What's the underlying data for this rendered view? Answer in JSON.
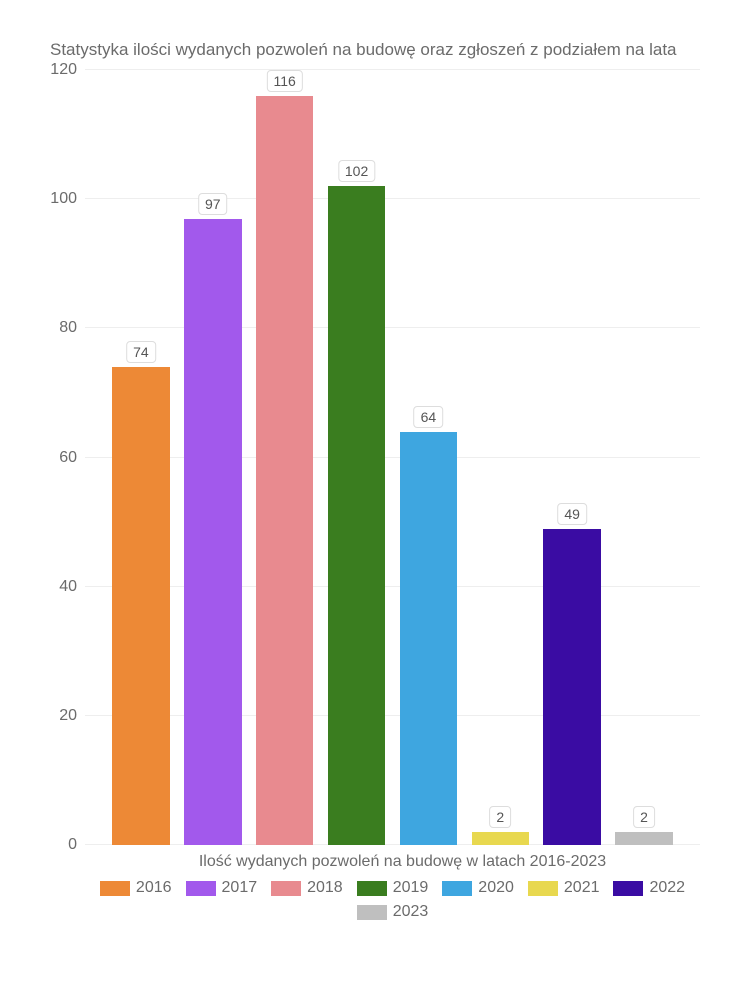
{
  "chart": {
    "type": "bar",
    "title": "Statystyka ilości wydanych pozwoleń na budowę oraz zgłoszeń z podziałem na lata",
    "xlabel": "Ilość wydanych pozwoleń na budowę w latach 2016-2023",
    "ylim": [
      0,
      120
    ],
    "ytick_step": 20,
    "yticks": [
      {
        "value": 0,
        "label": "0"
      },
      {
        "value": 20,
        "label": "20"
      },
      {
        "value": 40,
        "label": "40"
      },
      {
        "value": 60,
        "label": "60"
      },
      {
        "value": 80,
        "label": "80"
      },
      {
        "value": 100,
        "label": "100"
      },
      {
        "value": 120,
        "label": "120"
      }
    ],
    "bars": [
      {
        "year": "2016",
        "value": 74,
        "color": "#ed8936"
      },
      {
        "year": "2017",
        "value": 97,
        "color": "#a259ec"
      },
      {
        "year": "2018",
        "value": 116,
        "color": "#e88a8f"
      },
      {
        "year": "2019",
        "value": 102,
        "color": "#3a7d1f"
      },
      {
        "year": "2020",
        "value": 64,
        "color": "#3ea6e0"
      },
      {
        "year": "2021",
        "value": 2,
        "color": "#e8d84f"
      },
      {
        "year": "2022",
        "value": 49,
        "color": "#3a0ca3"
      },
      {
        "year": "2023",
        "value": 2,
        "color": "#bfbfbf"
      }
    ],
    "bar_width_pct": 10,
    "bar_gap_pct": 2.5,
    "background_color": "#ffffff",
    "grid_color": "#eeeeee",
    "text_color": "#6b6b6b",
    "title_fontsize": 17,
    "label_fontsize": 16,
    "value_label_fontsize": 14
  }
}
